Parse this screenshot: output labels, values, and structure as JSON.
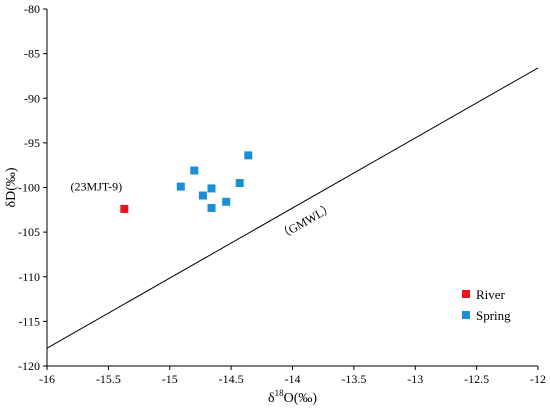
{
  "chart_data": {
    "type": "scatter",
    "xlabel": "δ18O(‰)",
    "xlabel_main": "δ",
    "xlabel_sup": "18",
    "xlabel_rest": "O(‰)",
    "ylabel": "δD(‰)",
    "xlim": [
      -16,
      -12
    ],
    "ylim": [
      -120,
      -80
    ],
    "xticks": [
      -16,
      -15.5,
      -15,
      -14.5,
      -14,
      -13.5,
      -13,
      -12.5,
      -12
    ],
    "xtick_labels": [
      "-16",
      "-15.5",
      "-15",
      "-14.5",
      "-14",
      "-13.5",
      "-13",
      "-12.5",
      "-12"
    ],
    "yticks": [
      -120,
      -115,
      -110,
      -105,
      -100,
      -95,
      -90,
      -85,
      -80
    ],
    "ytick_labels": [
      "-120",
      "-115",
      "-110",
      "-105",
      "-100",
      "-95",
      "-90",
      "-85",
      "-80"
    ],
    "legend_position": "bottom-right",
    "grid": false,
    "series": [
      {
        "name": "River",
        "color": "#e8141c",
        "marker": "square",
        "points": [
          {
            "x": -15.37,
            "y": -102.4
          }
        ]
      },
      {
        "name": "Spring",
        "color": "#1a8fd6",
        "marker": "square",
        "points": [
          {
            "x": -14.91,
            "y": -99.9
          },
          {
            "x": -14.8,
            "y": -98.1
          },
          {
            "x": -14.73,
            "y": -100.9
          },
          {
            "x": -14.66,
            "y": -100.1
          },
          {
            "x": -14.66,
            "y": -102.3
          },
          {
            "x": -14.54,
            "y": -101.6
          },
          {
            "x": -14.43,
            "y": -99.5
          },
          {
            "x": -14.36,
            "y": -96.4
          }
        ]
      }
    ],
    "lines": [
      {
        "name": "GMWL",
        "label": "（GMWL）",
        "color": "#000000",
        "points": [
          {
            "x": -16,
            "y": -118.0
          },
          {
            "x": -12,
            "y": -86.6
          }
        ]
      }
    ],
    "annotations": [
      {
        "text": "(23MJT-9)",
        "x": -15.37,
        "y": -101.0
      }
    ]
  }
}
